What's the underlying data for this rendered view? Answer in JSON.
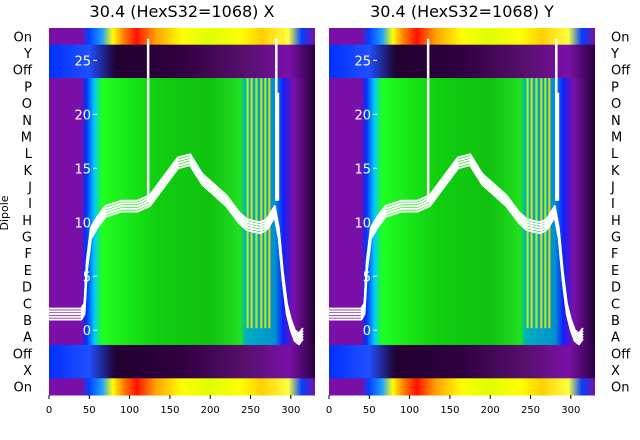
{
  "chart_data": [
    {
      "type": "heatmap",
      "title": "30.4 (HexS32=1068) X",
      "ylabel": "Dipole",
      "xlim": [
        0,
        330
      ],
      "x_ticks": [
        0,
        50,
        100,
        150,
        200,
        250,
        300
      ],
      "row_labels": [
        "On",
        "Y",
        "Off",
        "P",
        "O",
        "N",
        "M",
        "L",
        "K",
        "J",
        "I",
        "H",
        "G",
        "F",
        "E",
        "D",
        "C",
        "B",
        "A",
        "Off",
        "X",
        "On"
      ],
      "overlay_ylim": [
        -6,
        28
      ],
      "overlay_ticks": [
        0,
        5,
        10,
        15,
        20,
        25
      ],
      "overlay_series": {
        "x": [
          0,
          40,
          44,
          47,
          52,
          60,
          70,
          90,
          110,
          125,
          140,
          160,
          175,
          190,
          205,
          220,
          235,
          245,
          255,
          262,
          268,
          272,
          276,
          280,
          285,
          290,
          295,
          300,
          305,
          310,
          315
        ],
        "y": [
          1.5,
          1.5,
          2,
          6,
          9,
          10,
          11,
          11.5,
          11.5,
          12,
          13.5,
          15.5,
          15.8,
          14,
          13,
          12,
          10.5,
          9.8,
          9.6,
          9.5,
          9.7,
          10,
          10.5,
          11,
          9,
          5,
          2,
          0.5,
          -0.5,
          -0.8,
          -0.3
        ]
      }
    },
    {
      "type": "heatmap",
      "title": "30.4 (HexS32=1068) Y",
      "xlim": [
        0,
        330
      ],
      "x_ticks": [
        0,
        50,
        100,
        150,
        200,
        250,
        300
      ],
      "row_labels": [
        "On",
        "Y",
        "Off",
        "P",
        "O",
        "N",
        "M",
        "L",
        "K",
        "J",
        "I",
        "H",
        "G",
        "F",
        "E",
        "D",
        "C",
        "B",
        "A",
        "Off",
        "X",
        "On"
      ],
      "overlay_ylim": [
        -6,
        28
      ],
      "overlay_ticks": [
        0,
        5,
        10,
        15,
        20,
        25
      ],
      "overlay_series": {
        "x": [
          0,
          40,
          44,
          47,
          52,
          60,
          70,
          90,
          110,
          125,
          140,
          160,
          175,
          190,
          205,
          220,
          235,
          245,
          255,
          262,
          268,
          272,
          276,
          280,
          285,
          290,
          295,
          300,
          305,
          310,
          315
        ],
        "y": [
          1.5,
          1.5,
          2,
          6,
          9,
          10,
          11,
          11.5,
          11.5,
          12,
          13.5,
          15.5,
          15.8,
          14,
          13,
          12,
          10.5,
          9.8,
          9.6,
          9.5,
          9.7,
          10,
          10.5,
          11,
          9,
          5,
          2,
          0.5,
          -0.5,
          -0.8,
          -0.3
        ]
      }
    }
  ],
  "colors": {
    "purple": "#7a10a8",
    "blue": "#0040ff",
    "green": "#10d010",
    "cyan": "#00a0d0",
    "yellow": "#ffff00",
    "red": "#ff1000",
    "black": "#100010",
    "overlay": "#ffffff"
  }
}
